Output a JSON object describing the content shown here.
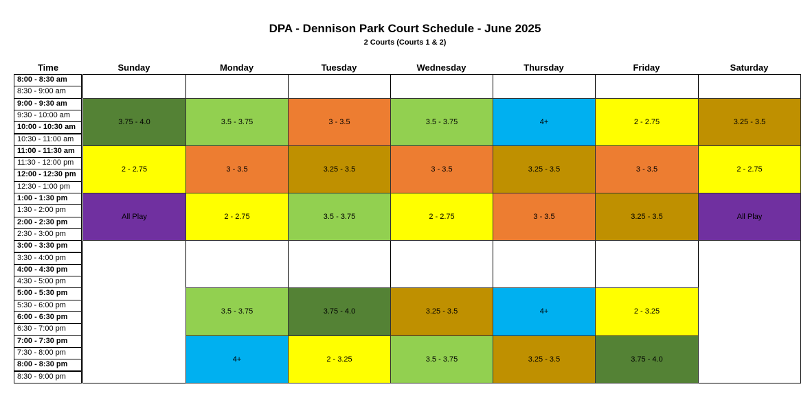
{
  "header": {
    "title": "DPA - Dennison Park Court Schedule - June 2025",
    "subtitle": "2 Courts (Courts 1 & 2)"
  },
  "columns": [
    "Time",
    "Sunday",
    "Monday",
    "Tuesday",
    "Wednesday",
    "Thursday",
    "Friday",
    "Saturday"
  ],
  "times": [
    "8:00 - 8:30 am",
    "8:30 - 9:00 am",
    "9:00 - 9:30 am",
    "9:30 - 10:00 am",
    "10:00 - 10:30 am",
    "10:30 - 11:00 am",
    "11:00 - 11:30 am",
    "11:30 - 12:00 pm",
    "12:00 - 12:30 pm",
    "12:30 - 1:00 pm",
    "1:00 - 1:30 pm",
    "1:30 - 2:00 pm",
    "2:00 - 2:30 pm",
    "2:30 - 3:00 pm",
    "3:00 - 3:30 pm",
    "3:30 - 4:00 pm",
    "4:00 - 4:30 pm",
    "4:30 - 5:00 pm",
    "5:00 - 5:30 pm",
    "5:30 - 6:00 pm",
    "6:00 - 6:30 pm",
    "6:30 - 7:00 pm",
    "7:00 - 7:30 pm",
    "7:30 - 8:00 pm",
    "8:00 - 8:30 pm",
    "8:30 - 9:00 pm"
  ],
  "colors": {
    "3.75 - 4.0": "#548235",
    "3.5 - 3.75": "#92d050",
    "3 - 3.5": "#ed7d31",
    "4+": "#00b0f0",
    "2 - 2.75": "#ffff00",
    "2 - 3.25": "#ffff00",
    "3.25 - 3.5": "#bf9000",
    "All Play": "#7030a0"
  },
  "schedule": {
    "Sunday": [
      {
        "start": 2,
        "len": 4,
        "label": "3.75 - 4.0"
      },
      {
        "start": 6,
        "len": 4,
        "label": "2 - 2.75"
      },
      {
        "start": 10,
        "len": 4,
        "label": "All Play"
      }
    ],
    "Monday": [
      {
        "start": 2,
        "len": 4,
        "label": "3.5 - 3.75"
      },
      {
        "start": 6,
        "len": 4,
        "label": "3 - 3.5"
      },
      {
        "start": 10,
        "len": 4,
        "label": "2 - 2.75"
      },
      {
        "start": 18,
        "len": 4,
        "label": "3.5 - 3.75"
      },
      {
        "start": 22,
        "len": 4,
        "label": "4+"
      }
    ],
    "Tuesday": [
      {
        "start": 2,
        "len": 4,
        "label": "3 - 3.5"
      },
      {
        "start": 6,
        "len": 4,
        "label": "3.25 - 3.5"
      },
      {
        "start": 10,
        "len": 4,
        "label": "3.5 - 3.75"
      },
      {
        "start": 18,
        "len": 4,
        "label": "3.75 - 4.0"
      },
      {
        "start": 22,
        "len": 4,
        "label": "2 - 3.25"
      }
    ],
    "Wednesday": [
      {
        "start": 2,
        "len": 4,
        "label": "3.5 - 3.75"
      },
      {
        "start": 6,
        "len": 4,
        "label": "3 - 3.5"
      },
      {
        "start": 10,
        "len": 4,
        "label": "2 - 2.75"
      },
      {
        "start": 18,
        "len": 4,
        "label": "3.25 - 3.5"
      },
      {
        "start": 22,
        "len": 4,
        "label": "3.5 - 3.75"
      }
    ],
    "Thursday": [
      {
        "start": 2,
        "len": 4,
        "label": "4+"
      },
      {
        "start": 6,
        "len": 4,
        "label": "3.25 - 3.5"
      },
      {
        "start": 10,
        "len": 4,
        "label": "3 - 3.5"
      },
      {
        "start": 18,
        "len": 4,
        "label": "4+"
      },
      {
        "start": 22,
        "len": 4,
        "label": "3.25 - 3.5"
      }
    ],
    "Friday": [
      {
        "start": 2,
        "len": 4,
        "label": "2 - 2.75"
      },
      {
        "start": 6,
        "len": 4,
        "label": "3 - 3.5"
      },
      {
        "start": 10,
        "len": 4,
        "label": "3.25 - 3.5"
      },
      {
        "start": 18,
        "len": 4,
        "label": "2 - 3.25"
      },
      {
        "start": 22,
        "len": 4,
        "label": "3.75 - 4.0"
      }
    ],
    "Saturday": [
      {
        "start": 2,
        "len": 4,
        "label": "3.25 - 3.5"
      },
      {
        "start": 6,
        "len": 4,
        "label": "2 - 2.75"
      },
      {
        "start": 10,
        "len": 4,
        "label": "All Play"
      }
    ]
  }
}
